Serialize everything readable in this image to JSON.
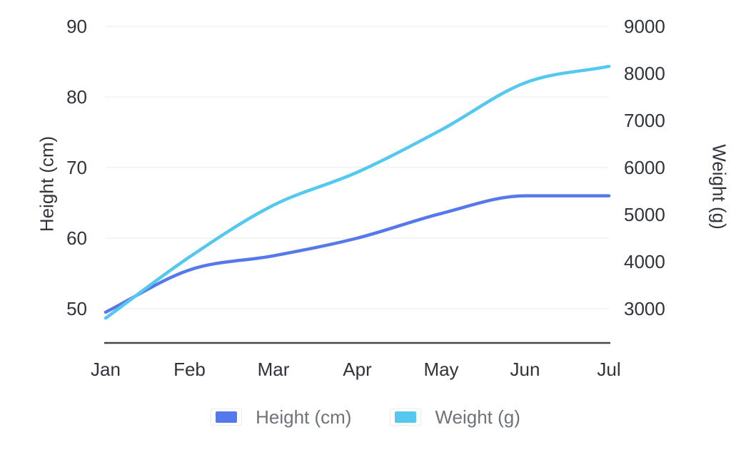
{
  "chart_data": {
    "type": "line",
    "title": "",
    "categories": [
      "Jan",
      "Feb",
      "Mar",
      "Apr",
      "May",
      "Jun",
      "Jul"
    ],
    "series": [
      {
        "name": "Height (cm)",
        "axis": "left",
        "color": "#5578EA",
        "values": [
          49.5,
          55.5,
          57.5,
          60,
          63.5,
          66,
          66
        ]
      },
      {
        "name": "Weight (g)",
        "axis": "right",
        "color": "#54C8EF",
        "values": [
          2800,
          4100,
          5200,
          5900,
          6800,
          7800,
          8150
        ]
      }
    ],
    "axes": {
      "left": {
        "label": "Height (cm)",
        "min": 50,
        "max": 90,
        "ticks": [
          50,
          60,
          70,
          80,
          90
        ]
      },
      "right": {
        "label": "Weight (g)",
        "min": 3000,
        "max": 9000,
        "ticks": [
          3000,
          4000,
          5000,
          6000,
          7000,
          8000,
          9000
        ]
      }
    },
    "legend": {
      "position": "bottom",
      "items": [
        "Height (cm)",
        "Weight (g)"
      ]
    },
    "grid": true,
    "smooth": true
  },
  "style": {
    "background": "#ffffff",
    "gridline_color": "#e8e8e8",
    "axis_line_color": "#42464d",
    "tick_text_color": "#2f333a",
    "legend_text_color": "#6e7379"
  }
}
